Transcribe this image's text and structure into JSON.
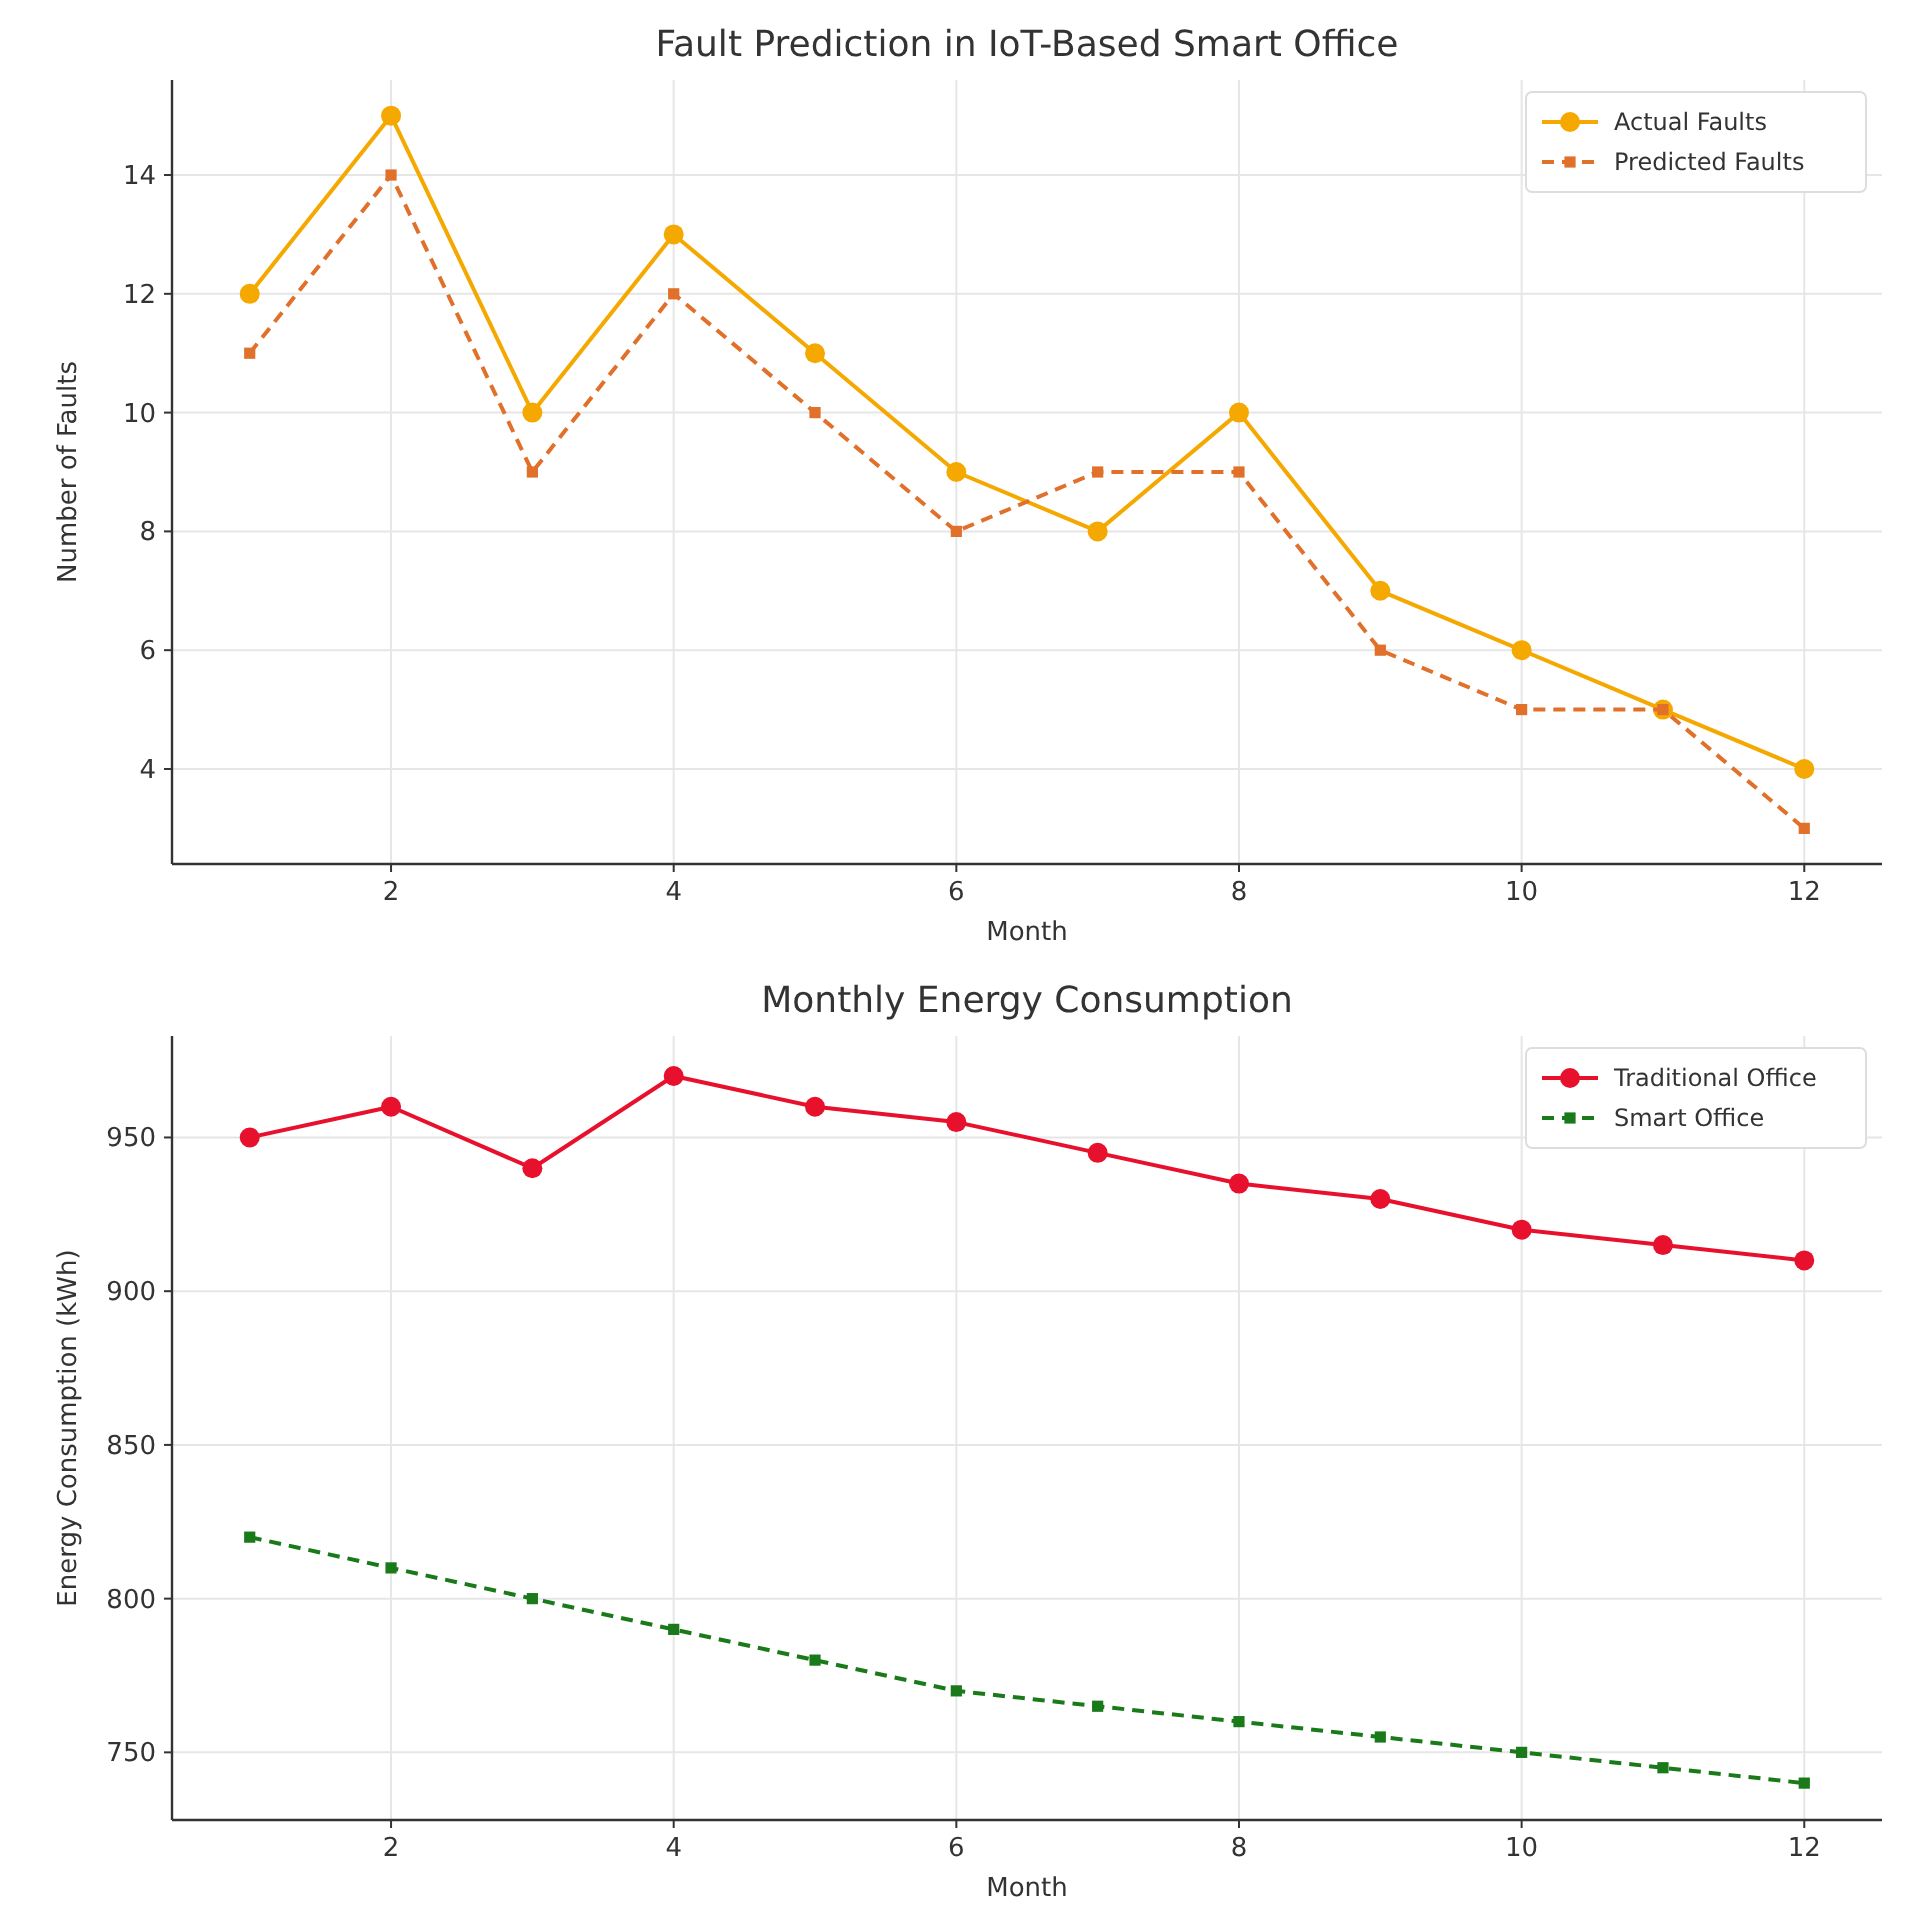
{
  "chart_data": [
    {
      "type": "line",
      "title": "Fault Prediction in IoT-Based Smart Office",
      "xlabel": "Month",
      "ylabel": "Number of Faults",
      "x": [
        1,
        2,
        3,
        4,
        5,
        6,
        7,
        8,
        9,
        10,
        11,
        12
      ],
      "xlim": [
        0.45,
        12.55
      ],
      "xticks": [
        2,
        4,
        6,
        8,
        10,
        12
      ],
      "ylim": [
        2.4,
        15.6
      ],
      "yticks": [
        4,
        6,
        8,
        10,
        12,
        14
      ],
      "grid": true,
      "legend": "top right",
      "series": [
        {
          "name": "Actual Faults",
          "color": "#f5a800",
          "marker": "circle",
          "line_style": "solid",
          "values": [
            12,
            15,
            10,
            13,
            11,
            9,
            8,
            10,
            7,
            6,
            5,
            4
          ]
        },
        {
          "name": "Predicted Faults",
          "color": "#e0702a",
          "marker": "square",
          "line_style": "dashed",
          "values": [
            11,
            14,
            9,
            12,
            10,
            8,
            9,
            9,
            6,
            5,
            5,
            3
          ]
        }
      ]
    },
    {
      "type": "line",
      "title": "Monthly Energy Consumption",
      "xlabel": "Month",
      "ylabel": "Energy Consumption (kWh)",
      "x": [
        1,
        2,
        3,
        4,
        5,
        6,
        7,
        8,
        9,
        10,
        11,
        12
      ],
      "xlim": [
        0.45,
        12.55
      ],
      "xticks": [
        2,
        4,
        6,
        8,
        10,
        12
      ],
      "ylim": [
        728,
        983
      ],
      "yticks": [
        750,
        800,
        850,
        900,
        950
      ],
      "grid": true,
      "legend": "top right",
      "series": [
        {
          "name": "Traditional Office",
          "color": "#e8112d",
          "marker": "circle",
          "line_style": "solid",
          "values": [
            950,
            960,
            940,
            970,
            960,
            955,
            945,
            935,
            930,
            920,
            915,
            910
          ]
        },
        {
          "name": "Smart Office",
          "color": "#1a7a1a",
          "marker": "square",
          "line_style": "dashed",
          "values": [
            820,
            810,
            800,
            790,
            780,
            770,
            765,
            760,
            755,
            750,
            745,
            740
          ]
        }
      ]
    }
  ]
}
